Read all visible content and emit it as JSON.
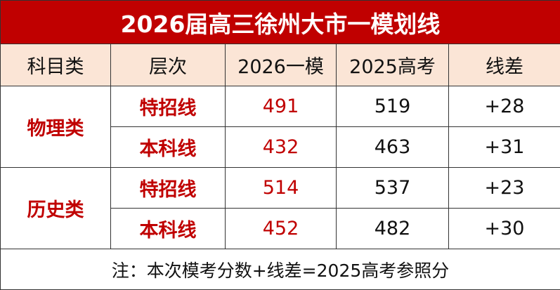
{
  "title": "2026届高三徐州大市一模划线",
  "table": {
    "header": [
      "科目类",
      "层次",
      "2026一模",
      "2025高考",
      "线差"
    ],
    "groups": [
      {
        "name": "物理类",
        "rows": [
          [
            "特招线",
            "491",
            "519",
            "+28"
          ],
          [
            "本科线",
            "432",
            "463",
            "+31"
          ]
        ]
      },
      {
        "name": "历史类",
        "rows": [
          [
            "特招线",
            "514",
            "537",
            "+23"
          ],
          [
            "本科线",
            "452",
            "482",
            "+30"
          ]
        ]
      }
    ]
  },
  "note": "注：本次模考分数+线差=2025高考参照分"
}
